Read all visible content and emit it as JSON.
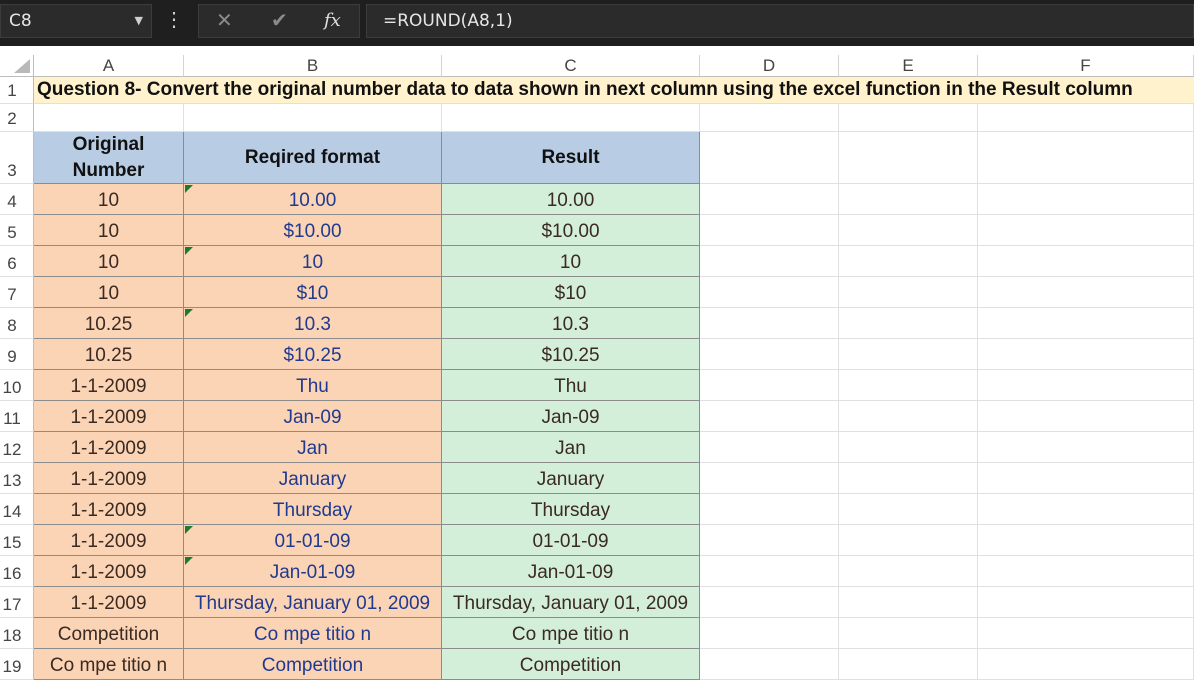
{
  "formula_bar": {
    "name_box": "C8",
    "kebab": "⋮",
    "cancel_glyph": "✕",
    "enter_glyph": "✔",
    "fx_label": "fx",
    "formula": "=ROUND(A8,1)"
  },
  "columns": [
    "A",
    "B",
    "C",
    "D",
    "E",
    "F"
  ],
  "rows": [
    "1",
    "2",
    "3",
    "4",
    "5",
    "6",
    "7",
    "8",
    "9",
    "10",
    "11",
    "12",
    "13",
    "14",
    "15",
    "16",
    "17",
    "18",
    "19"
  ],
  "title": "Question 8- Convert the original number data to data shown in next column using the excel function in the Result column",
  "table": {
    "headers": [
      "Original\nNumber",
      "Reqired format",
      "Result"
    ],
    "rows": [
      [
        "10",
        "10.00",
        "10.00"
      ],
      [
        "10",
        "$10.00",
        "$10.00"
      ],
      [
        "10",
        "10",
        "10"
      ],
      [
        "10",
        "$10",
        "$10"
      ],
      [
        "10.25",
        "10.3",
        "10.3"
      ],
      [
        "10.25",
        "$10.25",
        "$10.25"
      ],
      [
        "1-1-2009",
        "Thu",
        "Thu"
      ],
      [
        "1-1-2009",
        "Jan-09",
        "Jan-09"
      ],
      [
        "1-1-2009",
        "Jan",
        "Jan"
      ],
      [
        "1-1-2009",
        "January",
        "January"
      ],
      [
        "1-1-2009",
        "Thursday",
        "Thursday"
      ],
      [
        "1-1-2009",
        "01-01-09",
        "01-01-09"
      ],
      [
        "1-1-2009",
        "Jan-01-09",
        "Jan-01-09"
      ],
      [
        "1-1-2009",
        "Thursday, January 01, 2009",
        "Thursday, January 01, 2009"
      ],
      [
        "Competition",
        "Co mpe titio n",
        "Co mpe titio n"
      ],
      [
        "Co mpe titio n",
        "Competition",
        "Competition"
      ]
    ]
  },
  "colors": {
    "title_fill": "#fff2cc",
    "header_fill": "#b8cce4",
    "original_fill": "#fbd4b6",
    "result_fill": "#d3efd9"
  }
}
